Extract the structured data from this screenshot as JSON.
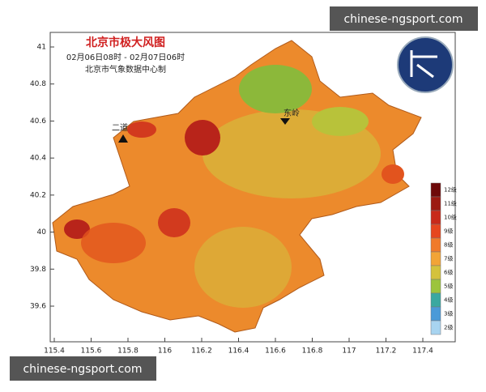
{
  "watermarks": [
    "chinese-ngsport.com",
    "chinese-ngsport.com"
  ],
  "map": {
    "title": "北京市极大风图",
    "subtitle": "02月06日08时 - 02月07日06时",
    "credit": "北京市气象数据中心制",
    "x_ticks": [
      115.4,
      115.6,
      115.8,
      116,
      116.2,
      116.4,
      116.6,
      116.8,
      117,
      117.2,
      117.4
    ],
    "y_ticks": [
      41,
      40.8,
      40.6,
      40.4,
      40.2,
      40,
      39.8,
      39.6
    ],
    "places": [
      "二道",
      "东岭"
    ],
    "legend": [
      {
        "label": "12级",
        "color": "#6e0a0a"
      },
      {
        "label": "11级",
        "color": "#9c1a12"
      },
      {
        "label": "10级",
        "color": "#c82a1a"
      },
      {
        "label": "9级",
        "color": "#e6461e"
      },
      {
        "label": "8级",
        "color": "#f07a2a"
      },
      {
        "label": "7级",
        "color": "#f2a436"
      },
      {
        "label": "6级",
        "color": "#d4c23c"
      },
      {
        "label": "5级",
        "color": "#9cc43c"
      },
      {
        "label": "4级",
        "color": "#3aa8a0"
      },
      {
        "label": "3级",
        "color": "#4a9ad8"
      },
      {
        "label": "2级",
        "color": "#a8d4f0"
      }
    ]
  }
}
